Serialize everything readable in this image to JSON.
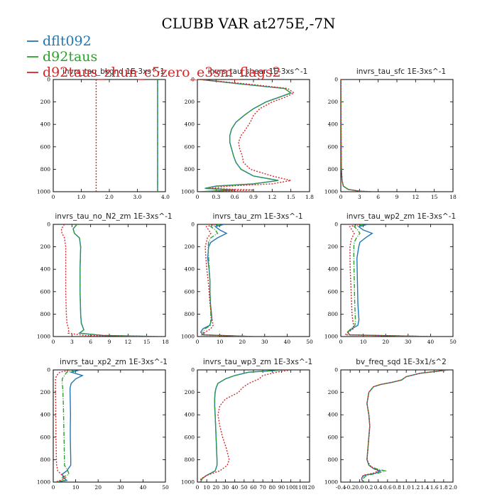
{
  "title": "CLUBB VAR at275E,-7N",
  "series": [
    {
      "name": "dflt092",
      "color": "#1f77b4",
      "dash": ""
    },
    {
      "name": "d92taus",
      "color": "#2ca02c",
      "dash": "6,2,1,2"
    },
    {
      "name": "d92taus_zhun_c5zero_e3sm_flags2",
      "color": "#d62728",
      "dash": "2,2"
    }
  ],
  "chart_data": [
    {
      "type": "line",
      "title": "invrs_tau_bkgnd  1E-3xs^-1",
      "xlim": [
        0,
        4
      ],
      "xticks": [
        "0",
        "1.0",
        "2.0",
        "3.0",
        "4.0"
      ],
      "xtick_values": [
        0,
        1,
        2,
        3,
        4
      ],
      "ylim": [
        1000,
        0
      ],
      "yticks": [
        "0",
        "200",
        "400",
        "600",
        "800",
        "1000"
      ],
      "y": [
        0,
        1000
      ],
      "series": [
        {
          "name": "dflt092",
          "values": [
            3.72,
            3.72
          ]
        },
        {
          "name": "d92taus",
          "values": [
            3.72,
            3.72
          ]
        },
        {
          "name": "d92taus_zhun_c5zero_e3sm_flags2",
          "values": [
            1.53,
            1.53
          ]
        }
      ]
    },
    {
      "type": "line",
      "title": "invrs_tau_shear  1E-3xs^-1",
      "xlim": [
        0,
        1.8
      ],
      "xticks": [
        "0",
        "0.3",
        "0.6",
        "0.9",
        "1.2",
        "1.5",
        "1.8"
      ],
      "xtick_values": [
        0,
        0.3,
        0.6,
        0.9,
        1.2,
        1.5,
        1.8
      ],
      "ylim": [
        1000,
        0
      ],
      "yticks": [
        "0",
        "200",
        "400",
        "600",
        "800",
        "1000"
      ],
      "y": [
        0,
        40,
        80,
        120,
        160,
        200,
        260,
        320,
        380,
        440,
        500,
        560,
        620,
        680,
        740,
        800,
        860,
        900,
        930,
        950,
        970,
        985,
        1000
      ],
      "series": [
        {
          "name": "dflt092",
          "values": [
            0.05,
            0.7,
            1.4,
            1.5,
            1.3,
            1.1,
            0.9,
            0.75,
            0.62,
            0.55,
            0.52,
            0.52,
            0.55,
            0.58,
            0.62,
            0.7,
            0.9,
            1.3,
            0.9,
            0.3,
            0.12,
            0.6,
            0.05
          ]
        },
        {
          "name": "d92taus",
          "values": [
            0.05,
            0.7,
            1.4,
            1.5,
            1.3,
            1.1,
            0.9,
            0.75,
            0.62,
            0.55,
            0.52,
            0.52,
            0.55,
            0.58,
            0.62,
            0.7,
            0.9,
            1.3,
            0.9,
            0.3,
            0.12,
            0.6,
            0.05
          ]
        },
        {
          "name": "d92taus_zhun_c5zero_e3sm_flags2",
          "values": [
            0.05,
            0.8,
            1.45,
            1.55,
            1.4,
            1.2,
            1.0,
            0.9,
            0.85,
            0.78,
            0.7,
            0.66,
            0.68,
            0.72,
            0.74,
            0.85,
            1.2,
            1.5,
            1.2,
            0.5,
            0.2,
            0.9,
            0.05
          ]
        }
      ]
    },
    {
      "type": "line",
      "title": "invrs_tau_sfc  1E-3xs^-1",
      "xlim": [
        0,
        18
      ],
      "xticks": [
        "0",
        "3",
        "6",
        "9",
        "12",
        "15",
        "18"
      ],
      "xtick_values": [
        0,
        3,
        6,
        9,
        12,
        15,
        18
      ],
      "ylim": [
        1000,
        0
      ],
      "yticks": [
        "0",
        "200",
        "400",
        "600",
        "800",
        "1000"
      ],
      "y": [
        0,
        200,
        400,
        600,
        800,
        900,
        950,
        980,
        995,
        1000
      ],
      "series": [
        {
          "name": "dflt092",
          "values": [
            0.02,
            0.03,
            0.04,
            0.06,
            0.1,
            0.2,
            0.4,
            1.2,
            3.0,
            5.0
          ]
        },
        {
          "name": "d92taus",
          "values": [
            0.02,
            0.03,
            0.04,
            0.06,
            0.1,
            0.2,
            0.4,
            1.2,
            3.0,
            5.0
          ]
        },
        {
          "name": "d92taus_zhun_c5zero_e3sm_flags2",
          "values": [
            0.02,
            0.03,
            0.04,
            0.06,
            0.1,
            0.2,
            0.4,
            1.2,
            3.0,
            5.0
          ]
        }
      ]
    },
    {
      "type": "line",
      "title": "invrs_tau_no_N2_zm  1E-3xs^-1",
      "xlim": [
        0,
        18
      ],
      "xticks": [
        "0",
        "3",
        "6",
        "9",
        "12",
        "15",
        "18"
      ],
      "xtick_values": [
        0,
        3,
        6,
        9,
        12,
        15,
        18
      ],
      "ylim": [
        1000,
        0
      ],
      "yticks": [
        "0",
        "200",
        "400",
        "600",
        "800",
        "1000"
      ],
      "y": [
        0,
        40,
        80,
        120,
        200,
        400,
        600,
        800,
        880,
        940,
        970,
        990,
        1000
      ],
      "series": [
        {
          "name": "dflt092",
          "values": [
            3.8,
            3.2,
            3.4,
            4.2,
            4.4,
            4.3,
            4.3,
            4.4,
            4.5,
            4.9,
            4.2,
            8.0,
            17.0
          ]
        },
        {
          "name": "d92taus",
          "values": [
            3.8,
            3.2,
            3.4,
            4.2,
            4.4,
            4.3,
            4.3,
            4.4,
            4.5,
            4.9,
            4.2,
            8.0,
            17.0
          ]
        },
        {
          "name": "d92taus_zhun_c5zero_e3sm_flags2",
          "values": [
            1.8,
            1.3,
            1.4,
            1.8,
            2.0,
            2.0,
            2.0,
            2.1,
            2.2,
            2.5,
            2.4,
            5.0,
            17.0
          ]
        }
      ]
    },
    {
      "type": "line",
      "title": "invrs_tau_zm  1E-3xs^-1",
      "xlim": [
        0,
        50
      ],
      "xticks": [
        "0",
        "10",
        "20",
        "30",
        "40",
        "50"
      ],
      "xtick_values": [
        0,
        10,
        20,
        30,
        40,
        50
      ],
      "ylim": [
        1000,
        0
      ],
      "yticks": [
        "0",
        "200",
        "400",
        "600",
        "800",
        "1000"
      ],
      "y": [
        0,
        20,
        50,
        80,
        120,
        160,
        200,
        300,
        400,
        500,
        600,
        700,
        800,
        850,
        900,
        930,
        960,
        985,
        1000
      ],
      "series": [
        {
          "name": "dflt092",
          "values": [
            12.0,
            8.0,
            10.0,
            13.0,
            9.0,
            6.0,
            5.0,
            4.6,
            5.2,
            5.6,
            5.6,
            5.8,
            6.3,
            6.4,
            5.5,
            2.5,
            1.5,
            2.5,
            25.0
          ]
        },
        {
          "name": "d92taus",
          "values": [
            10.0,
            6.0,
            8.0,
            9.0,
            6.0,
            5.0,
            4.8,
            5.0,
            5.3,
            5.6,
            5.6,
            5.8,
            6.0,
            6.0,
            5.8,
            3.5,
            2.5,
            3.0,
            25.0
          ]
        },
        {
          "name": "d92taus_zhun_c5zero_e3sm_flags2",
          "values": [
            8.0,
            4.0,
            5.0,
            6.0,
            4.5,
            4.0,
            3.5,
            3.8,
            4.2,
            4.8,
            5.2,
            5.6,
            6.2,
            6.6,
            7.0,
            6.0,
            3.5,
            2.0,
            25.0
          ]
        }
      ]
    },
    {
      "type": "line",
      "title": "invrs_tau_wp2_zm  1E-3xs^-1",
      "xlim": [
        0,
        50
      ],
      "xticks": [
        "0",
        "10",
        "20",
        "30",
        "40",
        "50"
      ],
      "xtick_values": [
        0,
        10,
        20,
        30,
        40,
        50
      ],
      "ylim": [
        1000,
        0
      ],
      "yticks": [
        "0",
        "200",
        "400",
        "600",
        "800",
        "1000"
      ],
      "y": [
        0,
        20,
        50,
        80,
        120,
        160,
        200,
        300,
        400,
        500,
        600,
        700,
        800,
        850,
        900,
        930,
        960,
        985,
        1000
      ],
      "series": [
        {
          "name": "dflt092",
          "values": [
            12.0,
            8.0,
            10.0,
            14.0,
            11.0,
            8.5,
            8.0,
            7.2,
            7.3,
            7.4,
            7.5,
            7.6,
            7.9,
            8.1,
            7.6,
            5.0,
            3.0,
            4.0,
            40.0
          ]
        },
        {
          "name": "d92taus",
          "values": [
            10.0,
            6.0,
            7.5,
            8.5,
            7.0,
            6.0,
            5.8,
            5.8,
            5.9,
            6.0,
            6.1,
            6.2,
            6.4,
            6.5,
            6.3,
            4.5,
            3.0,
            3.5,
            40.0
          ]
        },
        {
          "name": "d92taus_zhun_c5zero_e3sm_flags2",
          "values": [
            8.0,
            4.0,
            5.0,
            6.0,
            5.0,
            4.4,
            4.1,
            4.1,
            4.2,
            4.4,
            4.6,
            4.8,
            5.0,
            5.3,
            5.7,
            5.5,
            3.5,
            2.0,
            40.0
          ]
        }
      ]
    },
    {
      "type": "line",
      "title": "invrs_tau_xp2_zm  1E-3xs^-1",
      "xlim": [
        0,
        50
      ],
      "xticks": [
        "0",
        "10",
        "20",
        "30",
        "40",
        "50"
      ],
      "xtick_values": [
        0,
        10,
        20,
        30,
        40,
        50
      ],
      "ylim": [
        1000,
        0
      ],
      "yticks": [
        "0",
        "200",
        "400",
        "600",
        "800",
        "1000"
      ],
      "y": [
        0,
        20,
        50,
        80,
        120,
        160,
        200,
        300,
        400,
        500,
        600,
        700,
        800,
        850,
        900,
        930,
        960,
        985,
        1000
      ],
      "series": [
        {
          "name": "dflt092",
          "values": [
            12.0,
            8.0,
            13.0,
            10.0,
            8.0,
            7.5,
            7.5,
            7.6,
            7.7,
            7.6,
            7.6,
            7.7,
            7.8,
            7.8,
            6.0,
            4.0,
            4.5,
            6.0,
            1.0
          ]
        },
        {
          "name": "d92taus",
          "values": [
            10.0,
            6.0,
            5.0,
            4.0,
            4.0,
            4.2,
            4.3,
            4.5,
            4.6,
            4.7,
            4.8,
            4.9,
            5.0,
            5.0,
            6.5,
            7.0,
            4.0,
            5.0,
            1.0
          ]
        },
        {
          "name": "d92taus_zhun_c5zero_e3sm_flags2",
          "values": [
            8.0,
            3.0,
            1.5,
            1.0,
            1.0,
            1.0,
            1.0,
            1.1,
            1.1,
            1.2,
            1.2,
            1.3,
            1.4,
            1.5,
            2.0,
            3.5,
            5.5,
            3.0,
            1.0
          ]
        }
      ]
    },
    {
      "type": "line",
      "title": "invrs_tau_wp3_zm  1E-3xs^-1",
      "xlim": [
        0,
        120
      ],
      "xticks": [
        "0",
        "10",
        "20",
        "30",
        "40",
        "50",
        "60",
        "70",
        "80",
        "90",
        "100",
        "110",
        "120"
      ],
      "xtick_values": [
        0,
        10,
        20,
        30,
        40,
        50,
        60,
        70,
        80,
        90,
        100,
        110,
        120
      ],
      "ylim": [
        1000,
        0
      ],
      "yticks": [
        "0",
        "200",
        "400",
        "600",
        "800",
        "1000"
      ],
      "y": [
        0,
        20,
        50,
        80,
        120,
        160,
        200,
        260,
        320,
        400,
        500,
        600,
        700,
        800,
        850,
        900,
        940,
        970,
        990,
        1000
      ],
      "series": [
        {
          "name": "dflt092",
          "values": [
            95.0,
            55.0,
            40.0,
            30.0,
            22.0,
            20.0,
            19.0,
            18.5,
            18.5,
            19.0,
            19.5,
            20.0,
            20.5,
            21.0,
            21.0,
            19.0,
            10.0,
            5.0,
            4.0,
            3.0
          ]
        },
        {
          "name": "d92taus",
          "values": [
            95.0,
            55.0,
            40.0,
            30.0,
            22.0,
            20.0,
            19.0,
            18.5,
            18.5,
            19.0,
            19.5,
            20.0,
            20.5,
            21.0,
            21.0,
            19.0,
            10.0,
            5.0,
            4.0,
            3.0
          ]
        },
        {
          "name": "d92taus_zhun_c5zero_e3sm_flags2",
          "values": [
            100.0,
            85.0,
            70.0,
            66.0,
            55.0,
            48.0,
            44.0,
            30.0,
            24.0,
            22.0,
            24.0,
            27.0,
            31.0,
            34.0,
            32.0,
            24.0,
            10.0,
            4.0,
            3.0,
            3.0
          ]
        }
      ]
    },
    {
      "type": "line",
      "title": "bv_freq_sqd  1E-3x1/s^2",
      "xlim": [
        -0.4,
        2.0
      ],
      "xticks": [
        "-0.4",
        "-0.2",
        "0.0",
        "0.2",
        "0.4",
        "0.6",
        "0.8",
        "1.0",
        "1.2",
        "1.4",
        "1.6",
        "1.8",
        "2.0"
      ],
      "xtick_values": [
        -0.4,
        -0.2,
        0.0,
        0.2,
        0.4,
        0.6,
        0.8,
        1.0,
        1.2,
        1.4,
        1.6,
        1.8,
        2.0
      ],
      "ylim": [
        1000,
        0
      ],
      "yticks": [
        "0",
        "200",
        "400",
        "600",
        "800",
        "1000"
      ],
      "y": [
        0,
        30,
        60,
        90,
        110,
        130,
        150,
        200,
        300,
        400,
        500,
        600,
        700,
        800,
        850,
        880,
        900,
        920,
        940,
        960,
        980,
        1000
      ],
      "series": [
        {
          "name": "dflt092",
          "values": [
            1.9,
            1.3,
            1.0,
            0.9,
            0.7,
            0.45,
            0.3,
            0.2,
            0.16,
            0.2,
            0.22,
            0.2,
            0.18,
            0.16,
            0.2,
            0.3,
            0.45,
            0.35,
            0.1,
            0.05,
            0.05,
            0.1
          ]
        },
        {
          "name": "d92taus",
          "values": [
            1.9,
            1.3,
            1.0,
            0.9,
            0.7,
            0.45,
            0.3,
            0.2,
            0.16,
            0.2,
            0.22,
            0.2,
            0.18,
            0.16,
            0.2,
            0.35,
            0.55,
            0.4,
            0.15,
            0.1,
            0.05,
            0.1
          ]
        },
        {
          "name": "d92taus_zhun_c5zero_e3sm_flags2",
          "values": [
            1.9,
            1.3,
            1.0,
            0.9,
            0.7,
            0.45,
            0.3,
            0.2,
            0.16,
            0.2,
            0.22,
            0.2,
            0.18,
            0.16,
            0.22,
            0.3,
            0.4,
            0.3,
            0.08,
            0.05,
            0.05,
            0.1
          ]
        }
      ]
    }
  ]
}
